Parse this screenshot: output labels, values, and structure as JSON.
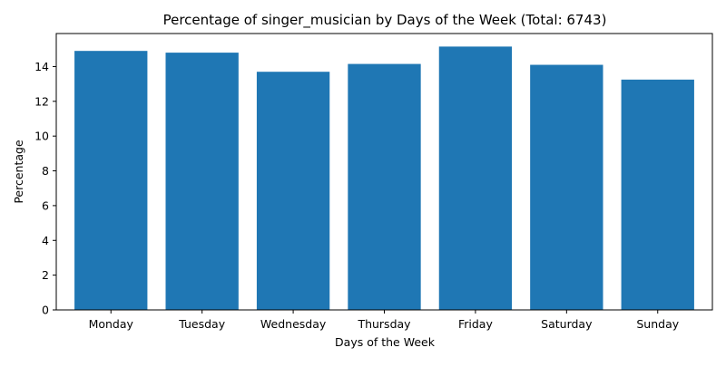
{
  "chart_data": {
    "type": "bar",
    "title": "Percentage of singer_musician by Days of the Week (Total: 6743)",
    "xlabel": "Days of the Week",
    "ylabel": "Percentage",
    "categories": [
      "Monday",
      "Tuesday",
      "Wednesday",
      "Thursday",
      "Friday",
      "Saturday",
      "Sunday"
    ],
    "values": [
      14.9,
      14.8,
      13.7,
      14.15,
      15.15,
      14.1,
      13.25
    ],
    "ylim": [
      0,
      15.9
    ],
    "yticks": [
      "0",
      "2",
      "4",
      "6",
      "8",
      "10",
      "12",
      "14"
    ],
    "grid": false,
    "legend": "none",
    "bar_color": "#1f77b4"
  }
}
